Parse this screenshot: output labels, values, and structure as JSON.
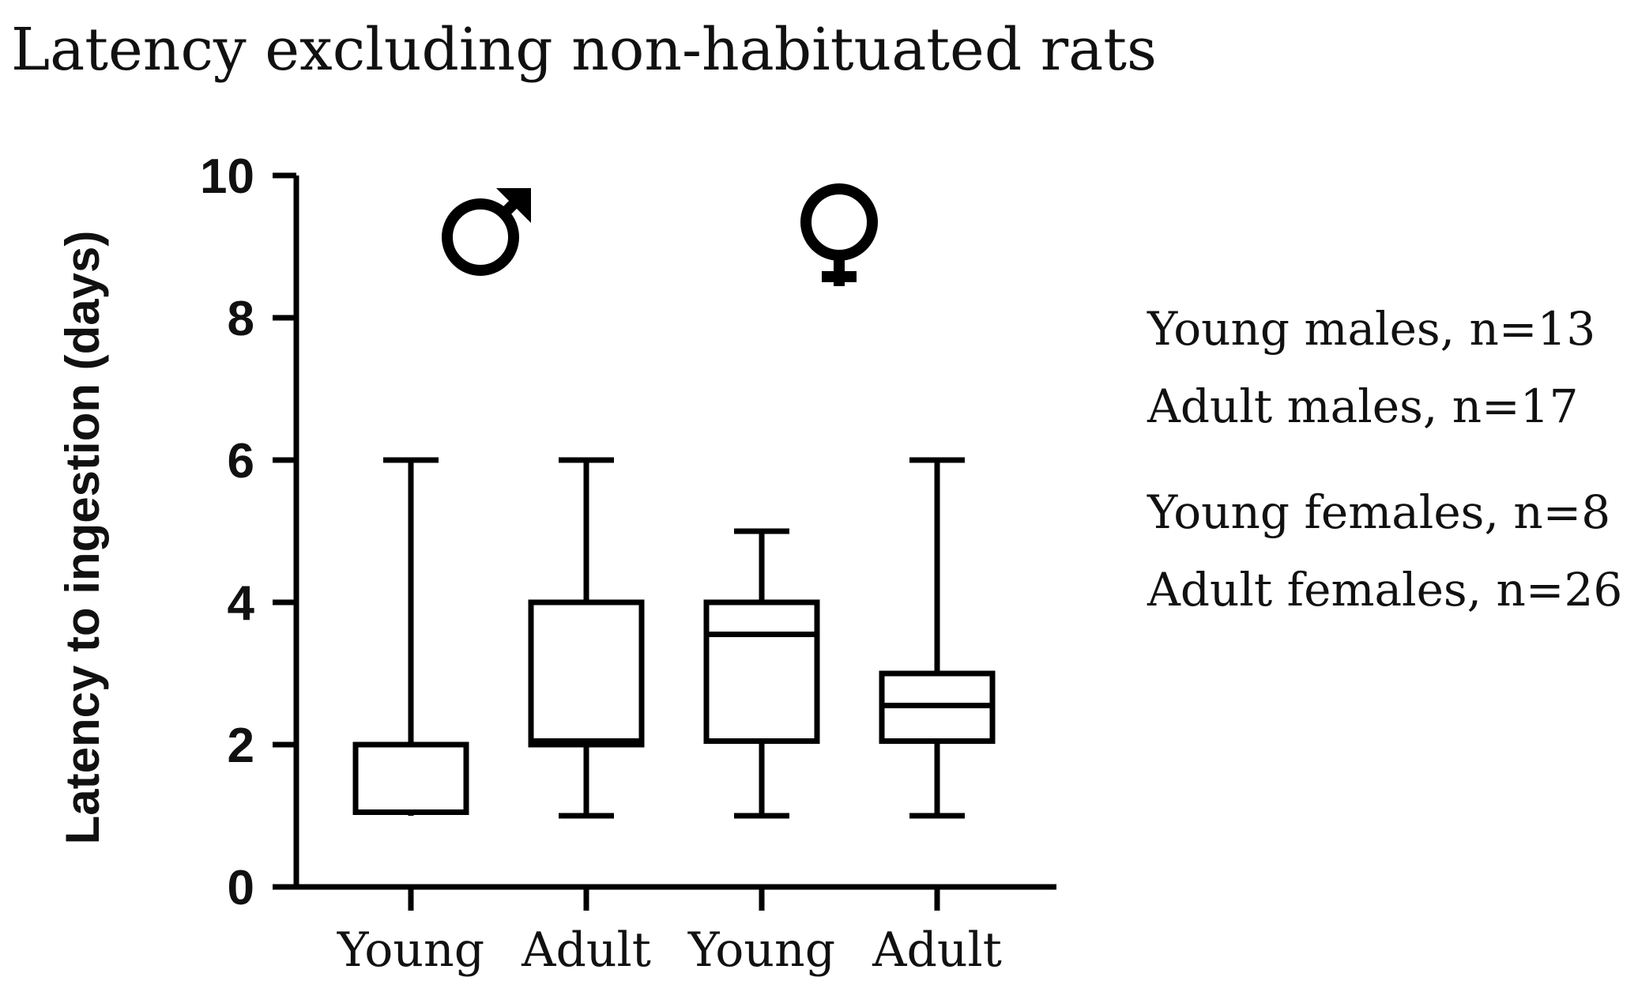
{
  "chart_data": {
    "type": "box",
    "title": "Latency excluding non-habituated rats",
    "xlabel": "",
    "ylabel": "Latency to ingestion (days)",
    "ylim": [
      0,
      10
    ],
    "yticks": [
      0,
      2,
      4,
      6,
      8,
      10
    ],
    "categories": [
      "Young",
      "Adult",
      "Young",
      "Adult"
    ],
    "groups": [
      {
        "name": "males",
        "symbol": "male-symbol",
        "categories": [
          0,
          1
        ]
      },
      {
        "name": "females",
        "symbol": "female-symbol",
        "categories": [
          2,
          3
        ]
      }
    ],
    "series": [
      {
        "name": "Young males",
        "min": 1,
        "q1": 1.05,
        "median": 2,
        "q3": 2,
        "max": 6
      },
      {
        "name": "Adult males",
        "min": 1,
        "q1": 2,
        "median": 2.05,
        "q3": 4,
        "max": 6
      },
      {
        "name": "Young females",
        "min": 1,
        "q1": 2.05,
        "median": 3.55,
        "q3": 4,
        "max": 5
      },
      {
        "name": "Adult females",
        "min": 1,
        "q1": 2.05,
        "median": 2.55,
        "q3": 3,
        "max": 6
      }
    ],
    "legend": [
      "Young males, n=13",
      "Adult males, n=17",
      "Young females, n=8",
      "Adult females, n=26"
    ],
    "legend_position": "right",
    "grid": false
  }
}
